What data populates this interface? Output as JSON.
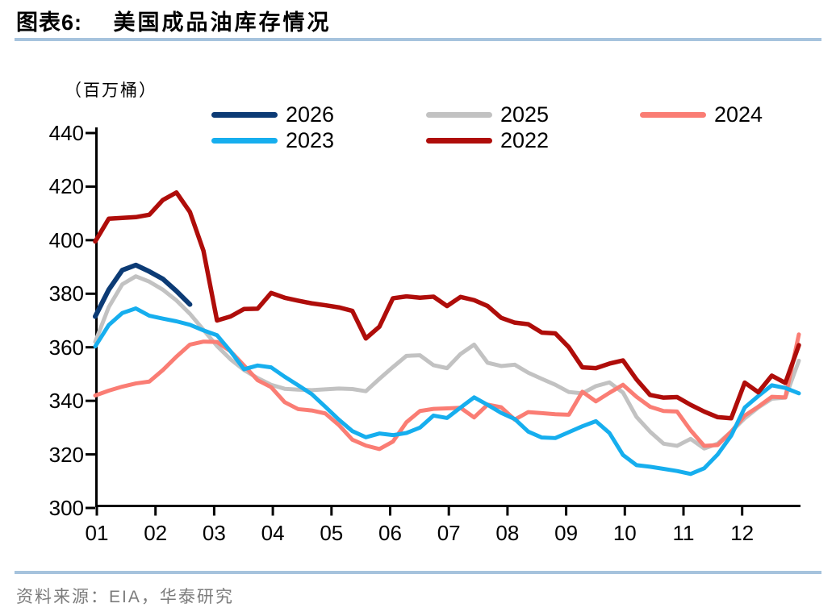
{
  "header": {
    "title_prefix": "图表6:",
    "title_text": "美国成品油库存情况"
  },
  "footer": {
    "source_label": "资料来源：EIA，华泰研究"
  },
  "colors": {
    "title_underline": "#A6C3DD",
    "footer_divider": "#A6C3DD",
    "source_text": "#7C7C7C",
    "axis": "#000000"
  },
  "chart_data": {
    "type": "line",
    "title": "美国成品油库存情况",
    "unit_label": "（百万桶）",
    "xlabel": "",
    "ylabel": "",
    "ylim": [
      300,
      440
    ],
    "y_ticks": [
      440,
      420,
      400,
      380,
      360,
      340,
      320,
      300
    ],
    "x_tick_labels": [
      "01",
      "02",
      "03",
      "04",
      "05",
      "06",
      "07",
      "08",
      "09",
      "10",
      "11",
      "12"
    ],
    "grid": "off",
    "legend_position": "top",
    "x_mode": "weekly points, Jan through Dec",
    "legend_rows": [
      [
        "2026",
        "2025",
        "2024"
      ],
      [
        "2023",
        "2022"
      ]
    ],
    "draw_order": [
      "2025",
      "2026",
      "2024",
      "2023",
      "2022"
    ],
    "series": [
      {
        "name": "2026",
        "color": "#0C3B75",
        "width": 6,
        "values": [
          371.5,
          381.5,
          388.8,
          390.7,
          388.3,
          385.5,
          381,
          376
        ]
      },
      {
        "name": "2025",
        "color": "#C2C2C2",
        "width": 5,
        "values": [
          362,
          375,
          383.5,
          386.5,
          384.5,
          381.5,
          377.5,
          372.5,
          366.5,
          360.5,
          355.5,
          351.5,
          348.5,
          346,
          344.5,
          344.2,
          344,
          344.3,
          344.6,
          344.4,
          343.6,
          348.2,
          352.6,
          356.8,
          357,
          353.3,
          352.2,
          357.5,
          361,
          354.2,
          353,
          353.5,
          350.5,
          348.2,
          346,
          343.3,
          342.8,
          345.5,
          346.9,
          343.1,
          334,
          328.5,
          324,
          323.2,
          325.8,
          322.2,
          324,
          328.5,
          333.5,
          337.5,
          340.8,
          341.2,
          355
        ]
      },
      {
        "name": "2024",
        "color": "#FA7D74",
        "width": 5,
        "values": [
          342,
          343.8,
          345.3,
          346.5,
          347.2,
          351.5,
          356.5,
          361,
          362.1,
          362,
          358.5,
          353.2,
          347.7,
          345.1,
          339.5,
          336.9,
          336.4,
          335.3,
          331,
          325.5,
          323.3,
          322,
          324.8,
          332,
          336.2,
          337,
          337.2,
          337.4,
          333.8,
          338.6,
          337.6,
          333,
          335.8,
          335.4,
          335,
          334.8,
          343.4,
          339.8,
          343,
          346,
          341.5,
          337.8,
          336.2,
          336,
          329,
          323.2,
          323.5,
          328.5,
          334.5,
          337.8,
          341.5,
          341.3,
          364.8
        ]
      },
      {
        "name": "2023",
        "color": "#16AEEE",
        "width": 5,
        "values": [
          360.3,
          368.3,
          372.8,
          374.5,
          371.8,
          370.7,
          369.7,
          368.4,
          366.3,
          364.5,
          358.5,
          351.8,
          353.2,
          352.5,
          349,
          345.8,
          342.5,
          337.8,
          333,
          328.7,
          326.4,
          327.8,
          327.2,
          328,
          330,
          334.5,
          333.6,
          337.5,
          341.3,
          338.5,
          335.5,
          333.2,
          328.5,
          326.3,
          326.1,
          328.3,
          330.5,
          332.4,
          328,
          319.8,
          316,
          315.4,
          314.6,
          313.8,
          312.7,
          314.8,
          320,
          327,
          337.5,
          341.8,
          345.8,
          344.8,
          342.8
        ]
      },
      {
        "name": "2022",
        "color": "#AF0D0A",
        "width": 5.5,
        "values": [
          399.5,
          408,
          408.3,
          408.6,
          409.5,
          415,
          417.8,
          410.5,
          396,
          370,
          371.5,
          374.3,
          374.4,
          380.3,
          378.5,
          377.4,
          376.4,
          375.7,
          374.9,
          373.6,
          363.3,
          367.7,
          378.3,
          379,
          378.5,
          378.9,
          375.4,
          378.8,
          377.6,
          375.4,
          371,
          369.2,
          368.6,
          365.5,
          365.2,
          360,
          352.5,
          352.2,
          353.9,
          355.1,
          348,
          342.2,
          341.2,
          341.4,
          338.5,
          336,
          333.9,
          333.5,
          346.8,
          343.2,
          349.4,
          346.7,
          360.8
        ]
      }
    ]
  }
}
